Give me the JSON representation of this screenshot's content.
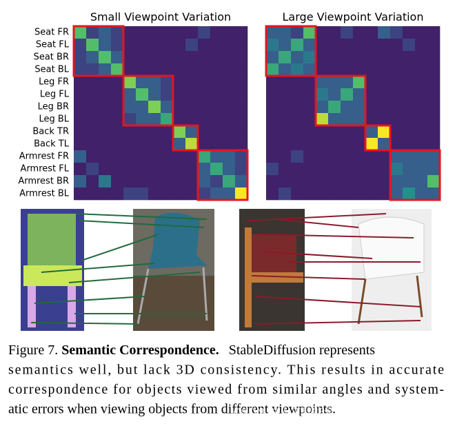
{
  "figure": {
    "row_labels": [
      "Seat FR",
      "Seat FL",
      "Seat BR",
      "Seat BL",
      "Leg FR",
      "Leg FL",
      "Leg BR",
      "Leg BL",
      "Back TR",
      "Back TL",
      "Armrest FR",
      "Armrest FL",
      "Armrest BR",
      "Armrest BL"
    ],
    "heatmaps": [
      {
        "title": "Small Viewpoint Variation",
        "values": [
          [
            0.7,
            0.2,
            0.3,
            0.2,
            0.1,
            0.1,
            0.1,
            0.1,
            0.1,
            0.1,
            0.2,
            0.1,
            0.1,
            0.1
          ],
          [
            0.2,
            0.7,
            0.3,
            0.2,
            0.1,
            0.1,
            0.1,
            0.1,
            0.1,
            0.2,
            0.1,
            0.1,
            0.1,
            0.1
          ],
          [
            0.2,
            0.3,
            0.7,
            0.3,
            0.1,
            0.1,
            0.1,
            0.1,
            0.1,
            0.1,
            0.1,
            0.1,
            0.1,
            0.1
          ],
          [
            0.2,
            0.2,
            0.3,
            0.7,
            0.1,
            0.1,
            0.1,
            0.1,
            0.1,
            0.1,
            0.1,
            0.1,
            0.1,
            0.1
          ],
          [
            0.1,
            0.1,
            0.1,
            0.1,
            0.8,
            0.3,
            0.3,
            0.2,
            0.1,
            0.1,
            0.1,
            0.1,
            0.1,
            0.1
          ],
          [
            0.1,
            0.1,
            0.1,
            0.1,
            0.3,
            0.7,
            0.3,
            0.2,
            0.1,
            0.1,
            0.1,
            0.1,
            0.1,
            0.1
          ],
          [
            0.1,
            0.1,
            0.1,
            0.1,
            0.3,
            0.3,
            0.8,
            0.3,
            0.1,
            0.1,
            0.1,
            0.1,
            0.1,
            0.1
          ],
          [
            0.1,
            0.1,
            0.1,
            0.1,
            0.2,
            0.3,
            0.3,
            0.6,
            0.1,
            0.1,
            0.1,
            0.1,
            0.1,
            0.1
          ],
          [
            0.1,
            0.1,
            0.1,
            0.1,
            0.1,
            0.1,
            0.1,
            0.1,
            0.8,
            0.3,
            0.1,
            0.1,
            0.1,
            0.1
          ],
          [
            0.1,
            0.1,
            0.1,
            0.1,
            0.1,
            0.1,
            0.1,
            0.1,
            0.3,
            0.9,
            0.1,
            0.1,
            0.1,
            0.1
          ],
          [
            0.3,
            0.1,
            0.1,
            0.1,
            0.1,
            0.1,
            0.1,
            0.1,
            0.1,
            0.1,
            0.6,
            0.3,
            0.3,
            0.2
          ],
          [
            0.1,
            0.2,
            0.1,
            0.1,
            0.1,
            0.1,
            0.1,
            0.1,
            0.1,
            0.1,
            0.3,
            0.6,
            0.3,
            0.2
          ],
          [
            0.3,
            0.1,
            0.4,
            0.1,
            0.1,
            0.1,
            0.1,
            0.1,
            0.1,
            0.1,
            0.3,
            0.2,
            0.6,
            0.3
          ],
          [
            0.1,
            0.1,
            0.1,
            0.1,
            0.2,
            0.2,
            0.1,
            0.1,
            0.1,
            0.1,
            0.2,
            0.3,
            0.3,
            1.0
          ]
        ]
      },
      {
        "title": "Large Viewpoint Variation",
        "values": [
          [
            0.3,
            0.3,
            0.2,
            0.7,
            0.1,
            0.1,
            0.2,
            0.1,
            0.1,
            0.3,
            0.2,
            0.1,
            0.1,
            0.1
          ],
          [
            0.4,
            0.3,
            0.6,
            0.3,
            0.1,
            0.1,
            0.1,
            0.1,
            0.1,
            0.1,
            0.1,
            0.2,
            0.1,
            0.1
          ],
          [
            0.3,
            0.6,
            0.3,
            0.4,
            0.1,
            0.1,
            0.1,
            0.1,
            0.1,
            0.1,
            0.1,
            0.1,
            0.1,
            0.1
          ],
          [
            0.6,
            0.3,
            0.4,
            0.3,
            0.1,
            0.1,
            0.1,
            0.1,
            0.1,
            0.1,
            0.1,
            0.1,
            0.1,
            0.1
          ],
          [
            0.1,
            0.1,
            0.1,
            0.1,
            0.3,
            0.3,
            0.3,
            0.7,
            0.1,
            0.1,
            0.1,
            0.1,
            0.1,
            0.1
          ],
          [
            0.1,
            0.1,
            0.1,
            0.1,
            0.4,
            0.3,
            0.6,
            0.3,
            0.1,
            0.1,
            0.1,
            0.1,
            0.1,
            0.1
          ],
          [
            0.1,
            0.1,
            0.1,
            0.1,
            0.3,
            0.6,
            0.3,
            0.3,
            0.1,
            0.1,
            0.1,
            0.1,
            0.1,
            0.1
          ],
          [
            0.1,
            0.1,
            0.1,
            0.1,
            0.9,
            0.3,
            0.3,
            0.3,
            0.1,
            0.1,
            0.1,
            0.1,
            0.1,
            0.1
          ],
          [
            0.1,
            0.1,
            0.1,
            0.1,
            0.1,
            0.1,
            0.1,
            0.1,
            0.3,
            1.0,
            0.1,
            0.1,
            0.1,
            0.1
          ],
          [
            0.1,
            0.1,
            0.1,
            0.1,
            0.1,
            0.1,
            0.1,
            0.1,
            1.0,
            0.3,
            0.1,
            0.1,
            0.1,
            0.1
          ],
          [
            0.1,
            0.1,
            0.2,
            0.1,
            0.1,
            0.1,
            0.1,
            0.1,
            0.1,
            0.1,
            0.3,
            0.3,
            0.3,
            0.3
          ],
          [
            0.2,
            0.1,
            0.1,
            0.1,
            0.1,
            0.1,
            0.1,
            0.1,
            0.1,
            0.1,
            0.4,
            0.3,
            0.3,
            0.3
          ],
          [
            0.1,
            0.1,
            0.1,
            0.1,
            0.1,
            0.1,
            0.1,
            0.1,
            0.1,
            0.1,
            0.3,
            0.3,
            0.3,
            0.7
          ],
          [
            0.1,
            0.2,
            0.1,
            0.1,
            0.1,
            0.1,
            0.1,
            0.1,
            0.1,
            0.1,
            0.3,
            0.5,
            0.3,
            0.3
          ]
        ]
      }
    ],
    "caption": {
      "prefix": "Figure 7.",
      "title": "Semantic Correspondence.",
      "lines": [
        "StableDiffusion represents",
        "semantics well, but lack 3D consistency. This results in accurate",
        "correspondence for objects viewed from similar angles and system-",
        "atic errors when viewing objects from different viewpoints."
      ]
    },
    "watermark": "CSDN @人工智能大模型讲师培训咨询叶梓"
  }
}
